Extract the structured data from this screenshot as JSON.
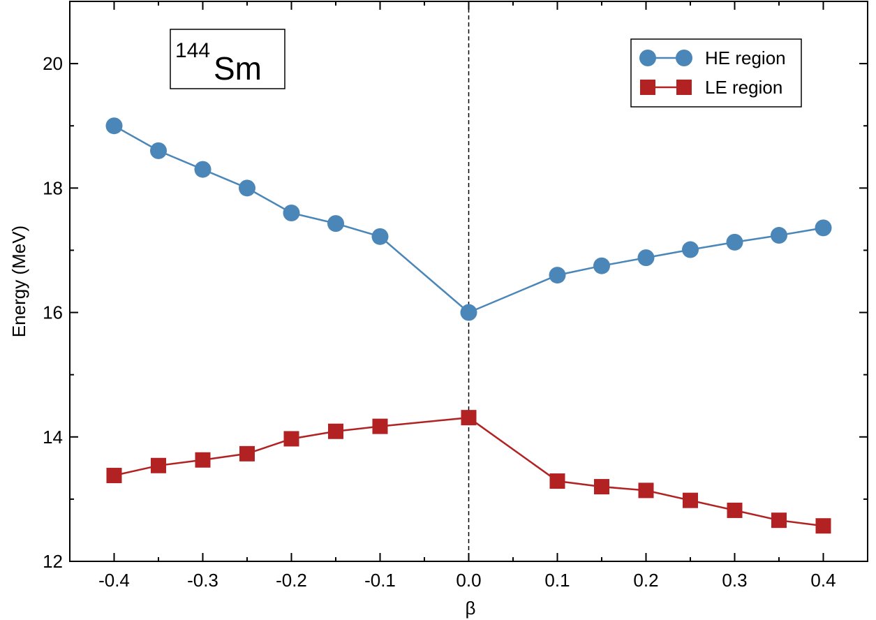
{
  "chart_data": {
    "type": "line",
    "xlabel": "β",
    "ylabel": "Energy (MeV)",
    "xlim": [
      -0.45,
      0.45
    ],
    "ylim": [
      12,
      21
    ],
    "x_ticks": [
      "-0.4",
      "-0.3",
      "-0.2",
      "-0.1",
      "0.0",
      "0.1",
      "0.2",
      "0.3",
      "0.4"
    ],
    "x_tick_values": [
      -0.4,
      -0.3,
      -0.2,
      -0.1,
      0.0,
      0.1,
      0.2,
      0.3,
      0.4
    ],
    "y_ticks": [
      "12",
      "14",
      "16",
      "18",
      "20"
    ],
    "y_tick_values": [
      12,
      14,
      16,
      18,
      20
    ],
    "grid": false,
    "legend_position": "top-right",
    "reference_line": {
      "x": 0.0,
      "style": "dashed"
    },
    "annotation": {
      "mass_number": "144",
      "symbol": "Sm",
      "position": "top-left"
    },
    "series": [
      {
        "name": "HE region",
        "marker": "circle",
        "color": "#4a86b8",
        "x": [
          -0.4,
          -0.35,
          -0.3,
          -0.25,
          -0.2,
          -0.15,
          -0.1,
          0.0,
          0.1,
          0.15,
          0.2,
          0.25,
          0.3,
          0.35,
          0.4
        ],
        "y": [
          19.0,
          18.6,
          18.3,
          18.0,
          17.6,
          17.43,
          17.22,
          16.0,
          16.6,
          16.75,
          16.88,
          17.01,
          17.13,
          17.24,
          17.36
        ]
      },
      {
        "name": "LE region",
        "marker": "square",
        "color": "#b22222",
        "x": [
          -0.4,
          -0.35,
          -0.3,
          -0.25,
          -0.2,
          -0.15,
          -0.1,
          0.0,
          0.1,
          0.15,
          0.2,
          0.25,
          0.3,
          0.35,
          0.4
        ],
        "y": [
          13.38,
          13.54,
          13.63,
          13.73,
          13.97,
          14.09,
          14.17,
          14.31,
          13.29,
          13.2,
          13.14,
          12.98,
          12.82,
          12.66,
          12.57
        ]
      }
    ]
  }
}
